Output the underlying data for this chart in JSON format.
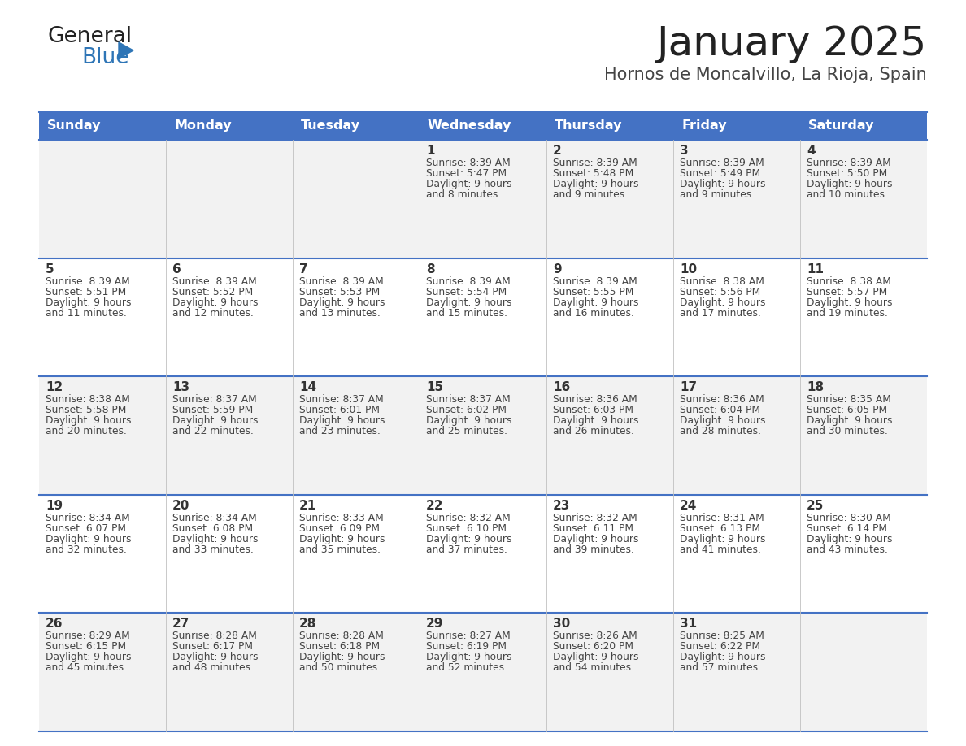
{
  "title": "January 2025",
  "subtitle": "Hornos de Moncalvillo, La Rioja, Spain",
  "header_bg": "#4472C4",
  "header_text_color": "#FFFFFF",
  "days_of_week": [
    "Sunday",
    "Monday",
    "Tuesday",
    "Wednesday",
    "Thursday",
    "Friday",
    "Saturday"
  ],
  "row_bg_odd": "#F2F2F2",
  "row_bg_even": "#FFFFFF",
  "cell_border_color": "#4472C4",
  "day_number_color": "#333333",
  "info_text_color": "#444444",
  "calendar": [
    [
      {
        "day": "",
        "sunrise": "",
        "sunset": "",
        "daylight": ""
      },
      {
        "day": "",
        "sunrise": "",
        "sunset": "",
        "daylight": ""
      },
      {
        "day": "",
        "sunrise": "",
        "sunset": "",
        "daylight": ""
      },
      {
        "day": "1",
        "sunrise": "8:39 AM",
        "sunset": "5:47 PM",
        "daylight": "9 hours and 8 minutes."
      },
      {
        "day": "2",
        "sunrise": "8:39 AM",
        "sunset": "5:48 PM",
        "daylight": "9 hours and 9 minutes."
      },
      {
        "day": "3",
        "sunrise": "8:39 AM",
        "sunset": "5:49 PM",
        "daylight": "9 hours and 9 minutes."
      },
      {
        "day": "4",
        "sunrise": "8:39 AM",
        "sunset": "5:50 PM",
        "daylight": "9 hours and 10 minutes."
      }
    ],
    [
      {
        "day": "5",
        "sunrise": "8:39 AM",
        "sunset": "5:51 PM",
        "daylight": "9 hours and 11 minutes."
      },
      {
        "day": "6",
        "sunrise": "8:39 AM",
        "sunset": "5:52 PM",
        "daylight": "9 hours and 12 minutes."
      },
      {
        "day": "7",
        "sunrise": "8:39 AM",
        "sunset": "5:53 PM",
        "daylight": "9 hours and 13 minutes."
      },
      {
        "day": "8",
        "sunrise": "8:39 AM",
        "sunset": "5:54 PM",
        "daylight": "9 hours and 15 minutes."
      },
      {
        "day": "9",
        "sunrise": "8:39 AM",
        "sunset": "5:55 PM",
        "daylight": "9 hours and 16 minutes."
      },
      {
        "day": "10",
        "sunrise": "8:38 AM",
        "sunset": "5:56 PM",
        "daylight": "9 hours and 17 minutes."
      },
      {
        "day": "11",
        "sunrise": "8:38 AM",
        "sunset": "5:57 PM",
        "daylight": "9 hours and 19 minutes."
      }
    ],
    [
      {
        "day": "12",
        "sunrise": "8:38 AM",
        "sunset": "5:58 PM",
        "daylight": "9 hours and 20 minutes."
      },
      {
        "day": "13",
        "sunrise": "8:37 AM",
        "sunset": "5:59 PM",
        "daylight": "9 hours and 22 minutes."
      },
      {
        "day": "14",
        "sunrise": "8:37 AM",
        "sunset": "6:01 PM",
        "daylight": "9 hours and 23 minutes."
      },
      {
        "day": "15",
        "sunrise": "8:37 AM",
        "sunset": "6:02 PM",
        "daylight": "9 hours and 25 minutes."
      },
      {
        "day": "16",
        "sunrise": "8:36 AM",
        "sunset": "6:03 PM",
        "daylight": "9 hours and 26 minutes."
      },
      {
        "day": "17",
        "sunrise": "8:36 AM",
        "sunset": "6:04 PM",
        "daylight": "9 hours and 28 minutes."
      },
      {
        "day": "18",
        "sunrise": "8:35 AM",
        "sunset": "6:05 PM",
        "daylight": "9 hours and 30 minutes."
      }
    ],
    [
      {
        "day": "19",
        "sunrise": "8:34 AM",
        "sunset": "6:07 PM",
        "daylight": "9 hours and 32 minutes."
      },
      {
        "day": "20",
        "sunrise": "8:34 AM",
        "sunset": "6:08 PM",
        "daylight": "9 hours and 33 minutes."
      },
      {
        "day": "21",
        "sunrise": "8:33 AM",
        "sunset": "6:09 PM",
        "daylight": "9 hours and 35 minutes."
      },
      {
        "day": "22",
        "sunrise": "8:32 AM",
        "sunset": "6:10 PM",
        "daylight": "9 hours and 37 minutes."
      },
      {
        "day": "23",
        "sunrise": "8:32 AM",
        "sunset": "6:11 PM",
        "daylight": "9 hours and 39 minutes."
      },
      {
        "day": "24",
        "sunrise": "8:31 AM",
        "sunset": "6:13 PM",
        "daylight": "9 hours and 41 minutes."
      },
      {
        "day": "25",
        "sunrise": "8:30 AM",
        "sunset": "6:14 PM",
        "daylight": "9 hours and 43 minutes."
      }
    ],
    [
      {
        "day": "26",
        "sunrise": "8:29 AM",
        "sunset": "6:15 PM",
        "daylight": "9 hours and 45 minutes."
      },
      {
        "day": "27",
        "sunrise": "8:28 AM",
        "sunset": "6:17 PM",
        "daylight": "9 hours and 48 minutes."
      },
      {
        "day": "28",
        "sunrise": "8:28 AM",
        "sunset": "6:18 PM",
        "daylight": "9 hours and 50 minutes."
      },
      {
        "day": "29",
        "sunrise": "8:27 AM",
        "sunset": "6:19 PM",
        "daylight": "9 hours and 52 minutes."
      },
      {
        "day": "30",
        "sunrise": "8:26 AM",
        "sunset": "6:20 PM",
        "daylight": "9 hours and 54 minutes."
      },
      {
        "day": "31",
        "sunrise": "8:25 AM",
        "sunset": "6:22 PM",
        "daylight": "9 hours and 57 minutes."
      },
      {
        "day": "",
        "sunrise": "",
        "sunset": "",
        "daylight": ""
      }
    ]
  ],
  "logo_general_color": "#222222",
  "logo_blue_color": "#2E75B6",
  "logo_triangle_color": "#2E75B6",
  "fig_width": 11.88,
  "fig_height": 9.18,
  "dpi": 100
}
